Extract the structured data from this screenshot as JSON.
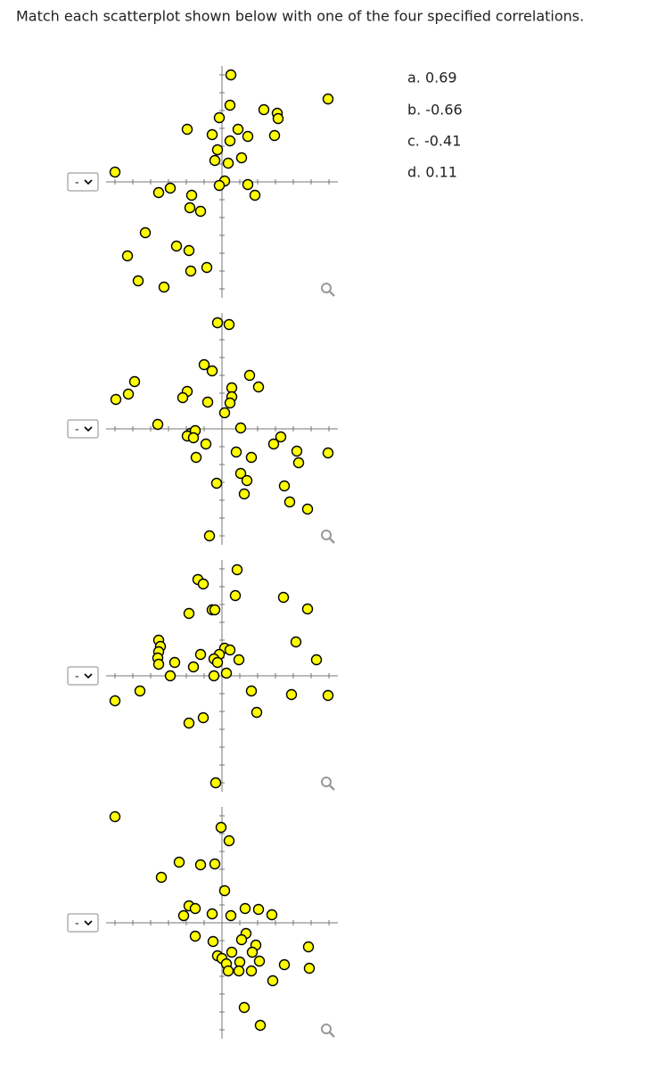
{
  "question": "Match each scatterplot shown below with one of the four specified correlations.",
  "options": [
    "a. 0.69",
    "b. -0.66",
    "c. -0.41",
    "d. 0.11"
  ],
  "selects": [
    "-",
    "-",
    "-",
    "-"
  ],
  "chart_data": [
    {
      "type": "scatter",
      "color": "#ffff00",
      "xlim": [
        -6.5,
        6.5
      ],
      "ylim": [
        -6.5,
        6.5
      ],
      "xticks": [
        -6,
        -5,
        -4,
        -3,
        -2,
        -1,
        0,
        1,
        2,
        3,
        4,
        5,
        6
      ],
      "yticks": [
        -6,
        -5,
        -4,
        -3,
        -2,
        -1,
        0,
        1,
        2,
        3,
        4,
        5,
        6
      ],
      "x": [
        0.5,
        5.95,
        0.45,
        2.35,
        3.1,
        3.15,
        -0.15,
        -1.95,
        -0.55,
        0.9,
        0.45,
        1.45,
        2.95,
        -0.25,
        0.35,
        1.1,
        -0.4,
        -6.0,
        0.15,
        -0.15,
        1.45,
        -2.9,
        -3.55,
        1.85,
        -1.7,
        -1.8,
        -1.2,
        -4.3,
        -2.55,
        -1.85,
        -5.3,
        -0.85,
        -1.75,
        -4.7,
        -3.25
      ],
      "y": [
        6.0,
        4.65,
        4.3,
        4.05,
        3.85,
        3.55,
        3.6,
        2.95,
        2.65,
        2.95,
        2.3,
        2.55,
        2.6,
        1.8,
        1.05,
        1.35,
        1.2,
        0.55,
        0.05,
        -0.2,
        -0.15,
        -0.35,
        -0.6,
        -0.75,
        -0.75,
        -1.45,
        -1.65,
        -2.85,
        -3.6,
        -3.85,
        -4.15,
        -4.8,
        -5.0,
        -5.55,
        -5.9
      ]
    },
    {
      "type": "scatter",
      "color": "#ffff00",
      "xlim": [
        -6.5,
        6.5
      ],
      "ylim": [
        -6.5,
        6.5
      ],
      "xticks": [
        -6,
        -5,
        -4,
        -3,
        -2,
        -1,
        0,
        1,
        2,
        3,
        4,
        5,
        6
      ],
      "yticks": [
        -6,
        -5,
        -4,
        -3,
        -2,
        -1,
        0,
        1,
        2,
        3,
        4,
        5,
        6
      ],
      "x": [
        -0.25,
        0.4,
        -1.0,
        -0.55,
        1.55,
        -4.9,
        2.05,
        0.55,
        -5.25,
        -5.95,
        -1.95,
        -2.2,
        -0.8,
        0.55,
        0.45,
        0.15,
        -3.6,
        1.05,
        -1.75,
        -1.95,
        -1.5,
        -1.6,
        3.3,
        2.9,
        -0.9,
        0.8,
        1.65,
        4.2,
        5.95,
        4.3,
        -1.45,
        1.05,
        1.4,
        -0.3,
        3.5,
        1.25,
        3.8,
        4.8,
        -0.7
      ],
      "y": [
        5.95,
        5.85,
        3.6,
        3.25,
        3.0,
        2.65,
        2.35,
        2.3,
        1.95,
        1.65,
        2.1,
        1.75,
        1.5,
        1.8,
        1.45,
        0.9,
        0.25,
        0.05,
        -0.25,
        -0.4,
        -0.1,
        -0.5,
        -0.45,
        -0.85,
        -0.85,
        -1.3,
        -1.6,
        -1.25,
        -1.35,
        -1.9,
        -1.6,
        -2.5,
        -2.9,
        -3.05,
        -3.2,
        -3.65,
        -4.1,
        -4.5,
        -6.0
      ]
    },
    {
      "type": "scatter",
      "color": "#ffff00",
      "xlim": [
        -6.5,
        6.5
      ],
      "ylim": [
        -6.5,
        6.5
      ],
      "xticks": [
        -6,
        -5,
        -4,
        -3,
        -2,
        -1,
        0,
        1,
        2,
        3,
        4,
        5,
        6
      ],
      "yticks": [
        -6,
        -5,
        -4,
        -3,
        -2,
        -1,
        0,
        1,
        2,
        3,
        4,
        5,
        6
      ],
      "x": [
        -1.35,
        -1.05,
        0.85,
        0.75,
        3.45,
        4.8,
        -1.85,
        -0.55,
        -0.4,
        -3.55,
        -3.45,
        -3.55,
        -3.6,
        -3.55,
        4.15,
        0.15,
        0.45,
        -0.15,
        0.95,
        -1.2,
        -0.45,
        -0.25,
        5.3,
        -2.65,
        -1.6,
        -2.9,
        -0.45,
        0.25,
        -4.6,
        -6.0,
        1.65,
        3.9,
        5.95,
        1.95,
        -1.05,
        -1.85,
        -0.35
      ],
      "y": [
        5.4,
        5.15,
        5.95,
        4.5,
        4.4,
        3.75,
        3.5,
        3.7,
        3.7,
        2.0,
        1.65,
        1.35,
        1.0,
        0.65,
        1.9,
        1.55,
        1.45,
        1.2,
        0.9,
        1.2,
        0.95,
        0.75,
        0.9,
        0.75,
        0.5,
        0,
        0,
        0.15,
        -0.85,
        -1.4,
        -0.85,
        -1.05,
        -1.1,
        -2.05,
        -2.35,
        -2.65,
        -6.0
      ]
    },
    {
      "type": "scatter",
      "color": "#ffff00",
      "xlim": [
        -6.5,
        6.5
      ],
      "ylim": [
        -6.5,
        6.5
      ],
      "xticks": [
        -6,
        -5,
        -4,
        -3,
        -2,
        -1,
        0,
        1,
        2,
        3,
        4,
        5,
        6
      ],
      "yticks": [
        -6,
        -5,
        -4,
        -3,
        -2,
        -1,
        0,
        1,
        2,
        3,
        4,
        5,
        6
      ],
      "x": [
        -6.0,
        -0.05,
        0.4,
        -2.4,
        -1.2,
        -0.4,
        -3.4,
        0.15,
        -1.85,
        -1.5,
        -2.15,
        -0.55,
        1.3,
        2.05,
        2.8,
        0.5,
        -1.5,
        -0.5,
        1.35,
        1.1,
        1.9,
        0.55,
        1.7,
        -0.25,
        0,
        1.0,
        2.1,
        0.25,
        3.5,
        4.85,
        4.9,
        0.35,
        0.95,
        1.65,
        2.85,
        1.25,
        2.15
      ],
      "y": [
        5.95,
        5.35,
        4.6,
        3.4,
        3.25,
        3.3,
        2.55,
        1.8,
        0.95,
        0.8,
        0.4,
        0.5,
        0.8,
        0.75,
        0.45,
        0.4,
        -0.75,
        -1.05,
        -0.6,
        -0.95,
        -1.25,
        -1.65,
        -1.65,
        -1.85,
        -2.0,
        -2.2,
        -2.15,
        -2.3,
        -2.35,
        -1.35,
        -2.55,
        -2.7,
        -2.7,
        -2.7,
        -3.25,
        -4.75,
        -5.75
      ]
    }
  ]
}
